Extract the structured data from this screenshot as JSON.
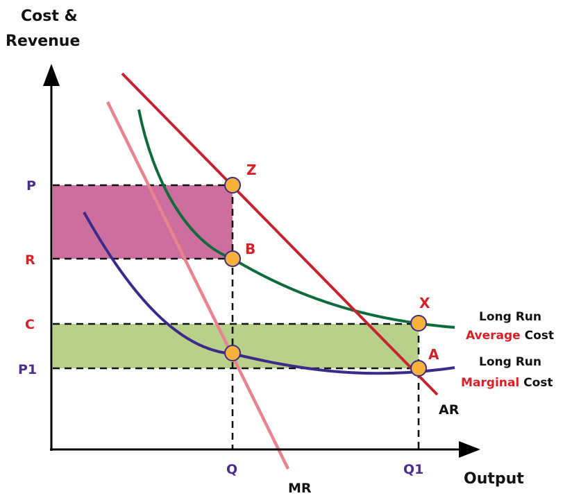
{
  "axes": {
    "y_label_line1": "Cost &",
    "y_label_line2": "Revenue",
    "x_label": "Output"
  },
  "y_ticks": {
    "p": "P",
    "r": "R",
    "c": "C",
    "p1": "P1"
  },
  "x_ticks": {
    "q": "Q",
    "q1": "Q1"
  },
  "points": {
    "z": "Z",
    "b": "B",
    "x": "X",
    "a": "A"
  },
  "curves": {
    "ar": "AR",
    "mr": "MR",
    "lrac_line1": "Long Run",
    "lrac_word": "Average",
    "lrac_tail": " Cost",
    "lrmc_line1": "Long Run",
    "lrmc_word": "Marginal",
    "lrmc_tail": " Cost"
  },
  "colors": {
    "axis": "#000000",
    "ar_line": "#c4232f",
    "mr_line": "#e8838f",
    "lrac_curve": "#0e6b3a",
    "lrmc_curve": "#3c2a8a",
    "profit_area": "#cc6e9e",
    "loss_area": "#b9d08a",
    "point_fill": "#f8b13a",
    "label_red": "#d71f26",
    "label_purple": "#4b2d8a",
    "label_black": "#111111"
  }
}
